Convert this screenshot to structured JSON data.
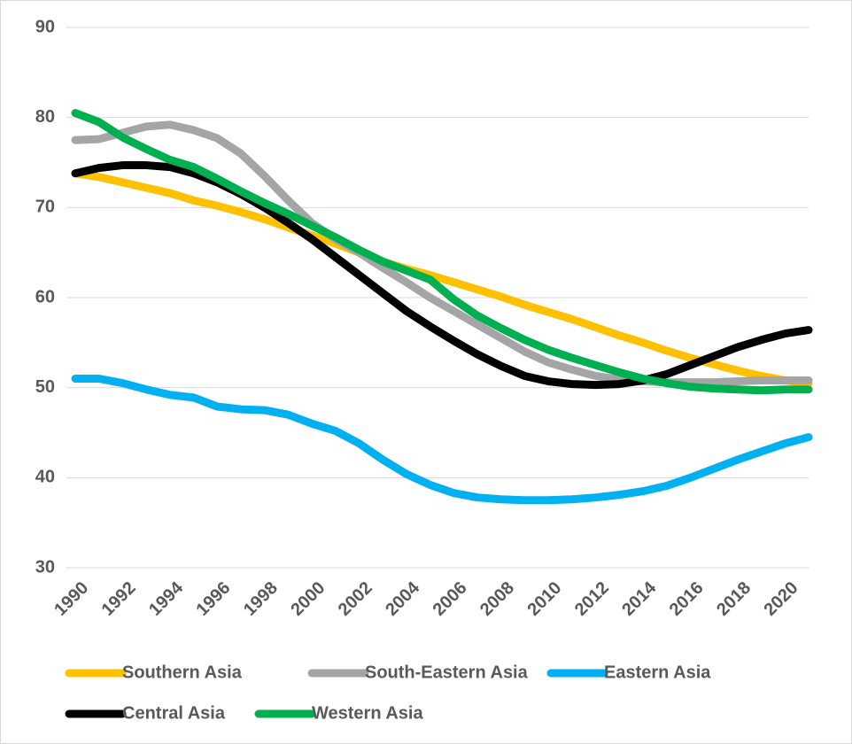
{
  "chart_data": {
    "type": "line",
    "x": [
      1990,
      1991,
      1992,
      1993,
      1994,
      1995,
      1996,
      1997,
      1998,
      1999,
      2000,
      2001,
      2002,
      2003,
      2004,
      2005,
      2006,
      2007,
      2008,
      2009,
      2010,
      2011,
      2012,
      2013,
      2014,
      2015,
      2016,
      2017,
      2018,
      2019,
      2020,
      2021
    ],
    "xlim": [
      1990,
      2021
    ],
    "xticks": [
      1990,
      1992,
      1994,
      1996,
      1998,
      2000,
      2002,
      2004,
      2006,
      2008,
      2010,
      2012,
      2014,
      2016,
      2018,
      2020
    ],
    "ylim": [
      30,
      90
    ],
    "yticks": [
      30,
      40,
      50,
      60,
      70,
      80,
      90
    ],
    "grid": true,
    "legend": "bottom",
    "series": [
      {
        "name": "Southern Asia",
        "color": "#FFC000",
        "values": [
          73.8,
          73.4,
          72.8,
          72.2,
          71.6,
          70.8,
          70.2,
          69.5,
          68.7,
          67.8,
          66.9,
          66.0,
          65.0,
          64.0,
          63.2,
          62.5,
          61.7,
          60.9,
          60.1,
          59.2,
          58.4,
          57.6,
          56.7,
          55.8,
          55.0,
          54.1,
          53.3,
          52.6,
          51.9,
          51.3,
          50.8,
          50.5
        ]
      },
      {
        "name": "South-Eastern Asia",
        "color": "#A5A5A5",
        "values": [
          77.5,
          77.6,
          78.3,
          79.0,
          79.2,
          78.6,
          77.7,
          76.0,
          73.5,
          70.8,
          68.3,
          66.5,
          65.0,
          63.3,
          61.7,
          60.0,
          58.5,
          57.0,
          55.5,
          54.0,
          52.8,
          52.0,
          51.3,
          50.9,
          50.7,
          50.6,
          50.6,
          50.6,
          50.7,
          50.8,
          50.8,
          50.8
        ]
      },
      {
        "name": "Eastern Asia",
        "color": "#00B0F0",
        "values": [
          51.0,
          51.0,
          50.5,
          49.8,
          49.2,
          48.9,
          47.9,
          47.6,
          47.5,
          47.0,
          46.0,
          45.2,
          43.8,
          42.0,
          40.4,
          39.2,
          38.3,
          37.8,
          37.6,
          37.5,
          37.5,
          37.6,
          37.8,
          38.1,
          38.5,
          39.1,
          40.0,
          41.0,
          42.0,
          42.9,
          43.8,
          44.5
        ]
      },
      {
        "name": "Central Asia",
        "color": "#000000",
        "values": [
          73.8,
          74.4,
          74.7,
          74.7,
          74.5,
          73.8,
          72.8,
          71.5,
          70.0,
          68.3,
          66.5,
          64.5,
          62.5,
          60.5,
          58.5,
          56.8,
          55.2,
          53.7,
          52.4,
          51.3,
          50.7,
          50.4,
          50.3,
          50.4,
          50.8,
          51.5,
          52.5,
          53.5,
          54.5,
          55.3,
          56.0,
          56.4
        ]
      },
      {
        "name": "Western Asia",
        "color": "#00B050",
        "values": [
          80.5,
          79.5,
          77.8,
          76.5,
          75.3,
          74.5,
          73.2,
          71.8,
          70.5,
          69.3,
          68.0,
          66.7,
          65.3,
          64.0,
          63.0,
          62.0,
          59.8,
          58.0,
          56.6,
          55.3,
          54.2,
          53.3,
          52.5,
          51.7,
          51.0,
          50.5,
          50.1,
          49.9,
          49.8,
          49.7,
          49.8,
          49.8
        ]
      }
    ]
  }
}
